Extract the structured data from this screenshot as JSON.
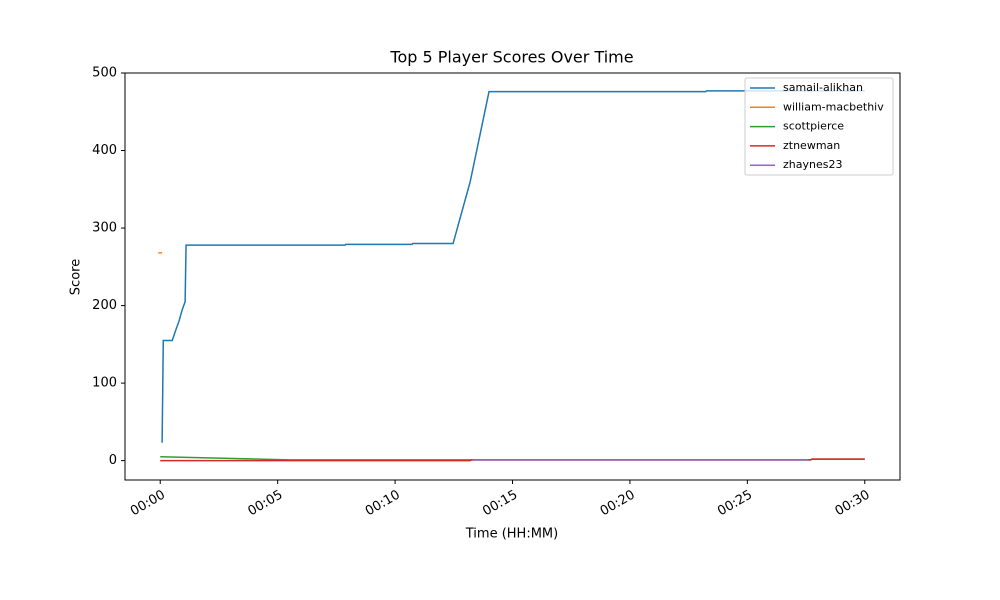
{
  "chart_data": {
    "type": "line",
    "title": "Top 5 Player Scores Over Time",
    "x_label": "Time (HH:MM)",
    "y_label": "Score",
    "xlim": [
      -1.5,
      31.5
    ],
    "ylim": [
      -25,
      500
    ],
    "xticks": [
      {
        "value": 0,
        "label": "00:00"
      },
      {
        "value": 5,
        "label": "00:05"
      },
      {
        "value": 10,
        "label": "00:10"
      },
      {
        "value": 15,
        "label": "00:15"
      },
      {
        "value": 20,
        "label": "00:20"
      },
      {
        "value": 25,
        "label": "00:25"
      },
      {
        "value": 30,
        "label": "00:30"
      }
    ],
    "yticks": [
      0,
      100,
      200,
      300,
      400,
      500
    ],
    "legend": "upper right",
    "series": [
      {
        "name": "samail-alikhan",
        "color": "#1f77b4",
        "x": [
          0.08,
          0.13,
          0.51,
          0.68,
          0.8,
          0.94,
          1.06,
          1.1,
          7.87,
          7.9,
          10.72,
          10.75,
          12.47,
          13.2,
          14.0,
          23.23,
          23.26,
          30
        ],
        "values": [
          23,
          155,
          155,
          170,
          180,
          195,
          205,
          278,
          278,
          279,
          279,
          280,
          280,
          360,
          476,
          476,
          477,
          477
        ]
      },
      {
        "name": "william-macbethiv",
        "color": "#ff7f0e",
        "x": [
          -0.08,
          0.08
        ],
        "values": [
          268,
          268
        ]
      },
      {
        "name": "scottpierce",
        "color": "#2ca02c",
        "x": [
          0,
          5.5,
          27.7,
          27.75,
          30
        ],
        "values": [
          5,
          1,
          1,
          2,
          2
        ]
      },
      {
        "name": "ztnewman",
        "color": "#d62728",
        "x": [
          0,
          13.2,
          13.25,
          27.7,
          27.75,
          30
        ],
        "values": [
          0,
          0,
          1,
          1,
          2,
          2
        ]
      },
      {
        "name": "zhaynes23",
        "color": "#9467bd",
        "x": [
          13.3,
          27.6
        ],
        "values": [
          1,
          1
        ]
      }
    ]
  }
}
